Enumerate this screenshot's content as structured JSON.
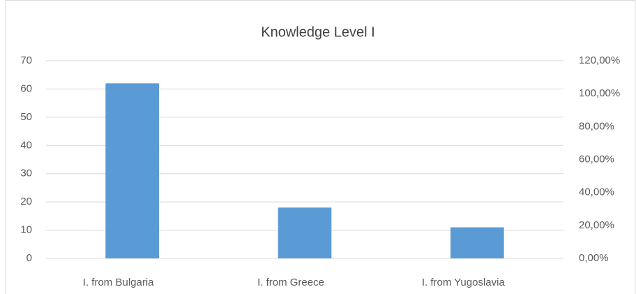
{
  "chart_data": {
    "type": "bar",
    "title": "Knowledge Level I",
    "categories": [
      "I. from Bulgaria",
      "I. from Greece",
      "I. from Yugoslavia"
    ],
    "values": [
      62,
      18,
      11
    ],
    "color": "#5b9bd5",
    "ylim": [
      0,
      70
    ],
    "yticks": [
      0,
      10,
      20,
      30,
      40,
      50,
      60,
      70
    ],
    "y2lim": [
      0,
      120
    ],
    "y2ticks": [
      {
        "value": 0,
        "label": "0,00%"
      },
      {
        "value": 20,
        "label": "20,00%"
      },
      {
        "value": 40,
        "label": "40,00%"
      },
      {
        "value": 60,
        "label": "60,00%"
      },
      {
        "value": 80,
        "label": "80,00%"
      },
      {
        "value": 100,
        "label": "100,00%"
      },
      {
        "value": 120,
        "label": "120,00%"
      }
    ],
    "grid": true
  }
}
